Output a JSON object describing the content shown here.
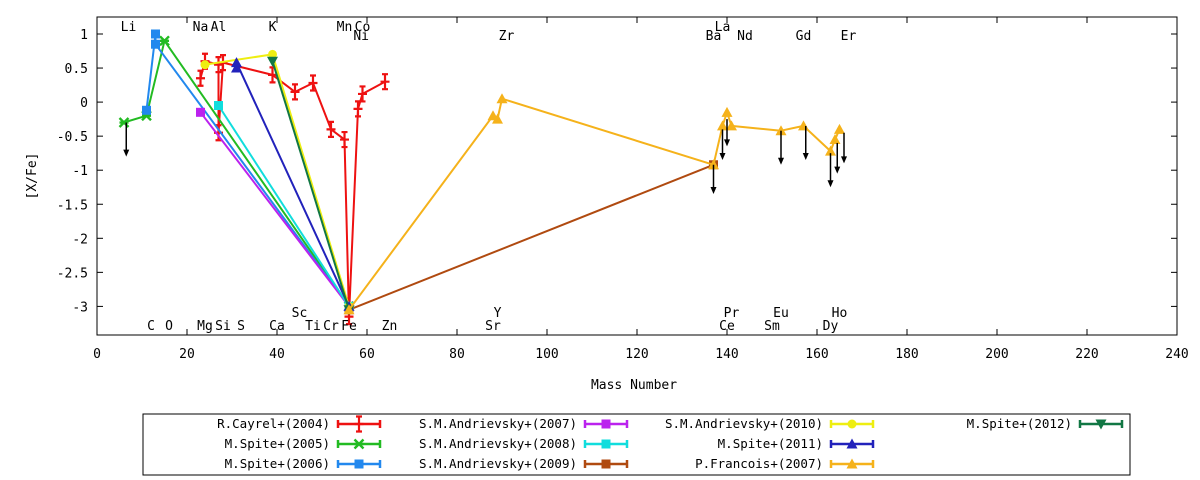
{
  "chart_data": {
    "type": "line",
    "xlabel": "Mass Number",
    "ylabel": "[X/Fe]",
    "xlim": [
      0,
      240
    ],
    "ylim": [
      -3.4,
      1.25
    ],
    "xticks": [
      0,
      20,
      40,
      60,
      80,
      100,
      120,
      140,
      160,
      180,
      200,
      220,
      240
    ],
    "yticks": [
      1,
      0.5,
      0,
      -0.5,
      -1,
      -1.5,
      -2,
      -2.5,
      -3
    ],
    "ytick_labels": [
      "1",
      "0.5",
      "0",
      "-0.5",
      "-1",
      "-1.5",
      "-2",
      "-2.5",
      "-3"
    ],
    "grid": false,
    "legend_position": "bottom",
    "element_labels_top": [
      {
        "label": "Li",
        "x": 7,
        "row": 1
      },
      {
        "label": "Na",
        "x": 23,
        "row": 1
      },
      {
        "label": "Al",
        "x": 27,
        "row": 1
      },
      {
        "label": "K",
        "x": 39,
        "row": 1
      },
      {
        "label": "Mn",
        "x": 55,
        "row": 1
      },
      {
        "label": "Co",
        "x": 59,
        "row": 1
      },
      {
        "label": "La",
        "x": 139,
        "row": 1
      },
      {
        "label": "Ni",
        "x": 58.7,
        "row": 2
      },
      {
        "label": "Zr",
        "x": 91,
        "row": 2
      },
      {
        "label": "Ba",
        "x": 137,
        "row": 2
      },
      {
        "label": "Nd",
        "x": 144,
        "row": 2
      },
      {
        "label": "Gd",
        "x": 157,
        "row": 2
      },
      {
        "label": "Er",
        "x": 167,
        "row": 2
      }
    ],
    "element_labels_bottom": [
      {
        "label": "Sc",
        "x": 45,
        "row": 1
      },
      {
        "label": "Y",
        "x": 89,
        "row": 1
      },
      {
        "label": "Pr",
        "x": 141,
        "row": 1
      },
      {
        "label": "Eu",
        "x": 152,
        "row": 1
      },
      {
        "label": "Ho",
        "x": 165,
        "row": 1
      },
      {
        "label": "C",
        "x": 12,
        "row": 2
      },
      {
        "label": "O",
        "x": 16,
        "row": 2
      },
      {
        "label": "Mg",
        "x": 24,
        "row": 2
      },
      {
        "label": "Si",
        "x": 28,
        "row": 2
      },
      {
        "label": "S",
        "x": 32,
        "row": 2
      },
      {
        "label": "Ca",
        "x": 40,
        "row": 2
      },
      {
        "label": "Ti",
        "x": 48,
        "row": 2
      },
      {
        "label": "Cr",
        "x": 52,
        "row": 2
      },
      {
        "label": "Fe",
        "x": 56,
        "row": 2
      },
      {
        "label": "Zn",
        "x": 65,
        "row": 2
      },
      {
        "label": "Sr",
        "x": 88,
        "row": 2
      },
      {
        "label": "Ce",
        "x": 140,
        "row": 2
      },
      {
        "label": "Sm",
        "x": 150,
        "row": 2
      },
      {
        "label": "Dy",
        "x": 163,
        "row": 2
      }
    ],
    "series": [
      {
        "name": "R.Cayrel+(2004)",
        "color": "#ee1111",
        "marker": "plus",
        "points": [
          [
            23,
            0.35
          ],
          [
            24,
            0.6
          ],
          [
            27,
            0.55
          ],
          [
            27,
            -0.45
          ],
          [
            28,
            0.58
          ],
          [
            39,
            0.4
          ],
          [
            44,
            0.15
          ],
          [
            48,
            0.28
          ],
          [
            52,
            -0.4
          ],
          [
            55,
            -0.55
          ],
          [
            56,
            -3.15
          ],
          [
            58,
            -0.1
          ],
          [
            59,
            0.12
          ],
          [
            64,
            0.3
          ]
        ]
      },
      {
        "name": "M.Spite+(2005)",
        "color": "#22bb22",
        "marker": "cross",
        "points": [
          [
            6,
            -0.3
          ],
          [
            11,
            -0.2
          ],
          [
            15,
            0.9
          ],
          [
            56,
            -3.0
          ]
        ]
      },
      {
        "name": "M.Spite+(2006)",
        "color": "#2288ee",
        "marker": "square",
        "points": [
          [
            11,
            -0.12
          ],
          [
            13,
            1.0
          ],
          [
            13,
            0.85
          ],
          [
            56,
            -3.0
          ]
        ]
      },
      {
        "name": "S.M.Andrievsky+(2007)",
        "color": "#bb22ee",
        "marker": "square",
        "points": [
          [
            23,
            -0.15
          ],
          [
            56,
            -3.0
          ]
        ]
      },
      {
        "name": "S.M.Andrievsky+(2008)",
        "color": "#11dddd",
        "marker": "square",
        "points": [
          [
            27,
            -0.05
          ],
          [
            56,
            -3.0
          ]
        ]
      },
      {
        "name": "S.M.Andrievsky+(2009)",
        "color": "#b04a10",
        "marker": "square",
        "points": [
          [
            56,
            -3.05
          ],
          [
            137,
            -0.92
          ]
        ]
      },
      {
        "name": "S.M.Andrievsky+(2010)",
        "color": "#eeee11",
        "marker": "circle",
        "points": [
          [
            24,
            0.55
          ],
          [
            39,
            0.7
          ],
          [
            56,
            -3.0
          ]
        ]
      },
      {
        "name": "M.Spite+(2011)",
        "color": "#2222bb",
        "marker": "triangle",
        "points": [
          [
            31,
            0.5
          ],
          [
            31,
            0.58
          ],
          [
            56,
            -3.0
          ]
        ]
      },
      {
        "name": "P.Francois+(2007)",
        "color": "#f5b21b",
        "marker": "triangle",
        "points": [
          [
            56,
            -3.05
          ],
          [
            88,
            -0.2
          ],
          [
            89,
            -0.25
          ],
          [
            90,
            0.05
          ],
          [
            137,
            -0.92
          ],
          [
            139,
            -0.35
          ],
          [
            140,
            -0.15
          ],
          [
            141,
            -0.35
          ],
          [
            152,
            -0.42
          ],
          [
            157,
            -0.35
          ],
          [
            163,
            -0.72
          ],
          [
            164,
            -0.55
          ],
          [
            165,
            -0.4
          ]
        ]
      },
      {
        "name": "M.Spite+(2012)",
        "color": "#117744",
        "marker": "triangle-down",
        "points": [
          [
            39,
            0.6
          ],
          [
            56,
            -3.05
          ]
        ]
      }
    ],
    "upper_limit_arrows": [
      {
        "x": 6.5,
        "y": -0.3,
        "y_end": -0.8
      },
      {
        "x": 137,
        "y": -0.92,
        "y_end": -1.35
      },
      {
        "x": 139,
        "y": -0.4,
        "y_end": -0.85
      },
      {
        "x": 140,
        "y": -0.25,
        "y_end": -0.65
      },
      {
        "x": 152,
        "y": -0.42,
        "y_end": -0.92
      },
      {
        "x": 157.5,
        "y": -0.35,
        "y_end": -0.85
      },
      {
        "x": 163,
        "y": -0.75,
        "y_end": -1.25
      },
      {
        "x": 164.5,
        "y": -0.6,
        "y_end": -1.05
      },
      {
        "x": 166,
        "y": -0.45,
        "y_end": -0.9
      }
    ]
  }
}
